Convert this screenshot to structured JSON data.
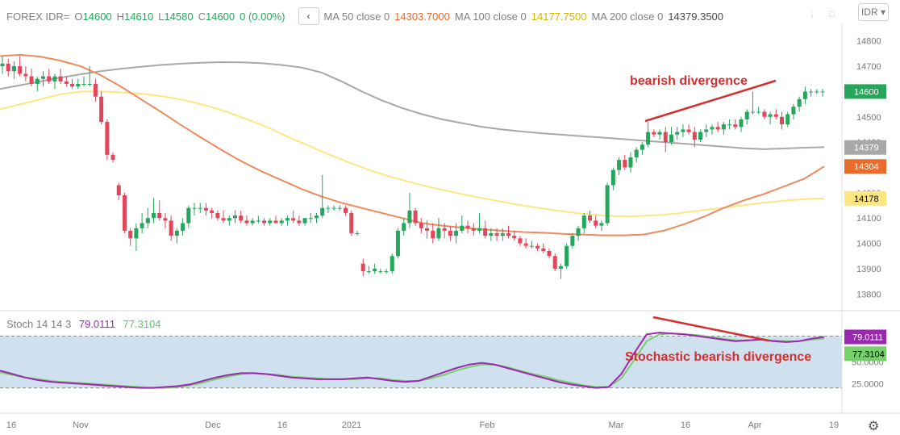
{
  "header": {
    "symbol": "FOREX IDR=",
    "o_label": "O",
    "o_value": "14600",
    "h_label": "H",
    "h_value": "14610",
    "l_label": "L",
    "l_value": "14580",
    "c_label": "C",
    "c_value": "14600",
    "change": "0 (0.00%)",
    "ma50_label": "MA 50 close 0",
    "ma50_value": "14303.7000",
    "ma100_label": "MA 100 close 0",
    "ma100_value": "14177.7500",
    "ma200_label": "MA 200 close 0",
    "ma200_value": "14379.3500",
    "currency": "IDR"
  },
  "colors": {
    "up": "#26a65b",
    "down": "#e0485a",
    "ma50": "#ee8a5e",
    "ma100": "#ffe680",
    "ma200": "#a8a8a8",
    "stoch_k": "#9c27b0",
    "stoch_d": "#76d16a",
    "stoch_band": "#cfe0ef",
    "divergence": "#d32f2f"
  },
  "chart_data": [
    {
      "type": "candlestick",
      "title": "FOREX IDR=",
      "ylim": [
        13750,
        14850
      ],
      "y_ticks": [
        13800,
        13900,
        14000,
        14100,
        14200,
        14300,
        14400,
        14500,
        14600,
        14700,
        14800
      ],
      "x_tick_labels": [
        "16",
        "Nov",
        "Dec",
        "16",
        "2021",
        "Feb",
        "Mar",
        "16",
        "Apr",
        "19"
      ],
      "price_labels": [
        {
          "text": "14600",
          "value": 14600,
          "color": "#26a65b"
        },
        {
          "text": "14379",
          "value": 14379,
          "color": "#a8a8a8"
        },
        {
          "text": "14304",
          "value": 14304,
          "color": "#e96c2d"
        },
        {
          "text": "14178",
          "value": 14178,
          "color": "#ffe680"
        }
      ],
      "candles": [
        [
          14700,
          14740,
          14670,
          14710
        ],
        [
          14710,
          14730,
          14660,
          14680
        ],
        [
          14680,
          14720,
          14650,
          14700
        ],
        [
          14700,
          14740,
          14660,
          14670
        ],
        [
          14670,
          14700,
          14640,
          14660
        ],
        [
          14660,
          14690,
          14620,
          14630
        ],
        [
          14630,
          14660,
          14600,
          14650
        ],
        [
          14650,
          14680,
          14620,
          14660
        ],
        [
          14660,
          14690,
          14630,
          14640
        ],
        [
          14640,
          14670,
          14610,
          14660
        ],
        [
          14660,
          14690,
          14630,
          14640
        ],
        [
          14640,
          14660,
          14620,
          14630
        ],
        [
          14630,
          14650,
          14610,
          14620
        ],
        [
          14620,
          14650,
          14610,
          14630
        ],
        [
          14630,
          14660,
          14620,
          14630
        ],
        [
          14630,
          14700,
          14620,
          14630
        ],
        [
          14630,
          14650,
          14560,
          14580
        ],
        [
          14580,
          14600,
          14470,
          14480
        ],
        [
          14480,
          14490,
          14330,
          14350
        ],
        [
          14350,
          14360,
          14320,
          14330
        ],
        [
          14230,
          14240,
          14170,
          14190
        ],
        [
          14190,
          14200,
          14040,
          14050
        ],
        [
          14050,
          14060,
          13990,
          14020
        ],
        [
          14020,
          14080,
          13970,
          14060
        ],
        [
          14060,
          14120,
          14040,
          14080
        ],
        [
          14080,
          14140,
          14060,
          14100
        ],
        [
          14100,
          14180,
          14080,
          14120
        ],
        [
          14120,
          14170,
          14090,
          14100
        ],
        [
          14100,
          14120,
          14060,
          14090
        ],
        [
          14090,
          14110,
          14010,
          14030
        ],
        [
          14030,
          14060,
          14000,
          14050
        ],
        [
          14050,
          14100,
          14030,
          14080
        ],
        [
          14080,
          14150,
          14060,
          14140
        ],
        [
          14140,
          14160,
          14110,
          14140
        ],
        [
          14140,
          14160,
          14120,
          14140
        ],
        [
          14140,
          14160,
          14110,
          14130
        ],
        [
          14130,
          14140,
          14100,
          14120
        ],
        [
          14120,
          14130,
          14090,
          14100
        ],
        [
          14100,
          14130,
          14080,
          14090
        ],
        [
          14090,
          14110,
          14070,
          14100
        ],
        [
          14100,
          14130,
          14080,
          14110
        ],
        [
          14110,
          14130,
          14080,
          14090
        ],
        [
          14090,
          14110,
          14070,
          14080
        ],
        [
          14080,
          14100,
          14070,
          14090
        ],
        [
          14090,
          14110,
          14080,
          14090
        ],
        [
          14090,
          14100,
          14070,
          14080
        ],
        [
          14080,
          14100,
          14070,
          14090
        ],
        [
          14090,
          14110,
          14080,
          14080
        ],
        [
          14080,
          14100,
          14070,
          14090
        ],
        [
          14090,
          14110,
          14070,
          14100
        ],
        [
          14100,
          14130,
          14080,
          14090
        ],
        [
          14090,
          14110,
          14070,
          14080
        ],
        [
          14080,
          14100,
          14070,
          14100
        ],
        [
          14100,
          14120,
          14080,
          14100
        ],
        [
          14100,
          14120,
          14080,
          14110
        ],
        [
          14110,
          14270,
          14100,
          14140
        ],
        [
          14140,
          14150,
          14120,
          14140
        ],
        [
          14140,
          14150,
          14130,
          14140
        ],
        [
          14140,
          14150,
          14130,
          14140
        ],
        [
          14140,
          14150,
          14110,
          14120
        ],
        [
          14120,
          14130,
          14030,
          14040
        ],
        [
          14040,
          14050,
          14030,
          14040
        ],
        [
          13920,
          13940,
          13870,
          13890
        ],
        [
          13890,
          13910,
          13880,
          13890
        ],
        [
          13890,
          13920,
          13880,
          13900
        ],
        [
          13890,
          13900,
          13880,
          13890
        ],
        [
          13890,
          13900,
          13880,
          13890
        ],
        [
          13890,
          13960,
          13880,
          13950
        ],
        [
          13950,
          14060,
          13940,
          14050
        ],
        [
          14050,
          14100,
          14030,
          14080
        ],
        [
          14080,
          14200,
          14060,
          14130
        ],
        [
          14130,
          14140,
          14070,
          14080
        ],
        [
          14080,
          14100,
          14040,
          14060
        ],
        [
          14060,
          14090,
          14020,
          14050
        ],
        [
          14050,
          14080,
          14000,
          14020
        ],
        [
          14020,
          14100,
          14010,
          14060
        ],
        [
          14060,
          14080,
          14020,
          14050
        ],
        [
          14050,
          14070,
          14010,
          14030
        ],
        [
          14030,
          14080,
          14000,
          14050
        ],
        [
          14050,
          14110,
          14040,
          14070
        ],
        [
          14070,
          14090,
          14040,
          14060
        ],
        [
          14060,
          14080,
          14030,
          14050
        ],
        [
          14050,
          14120,
          14040,
          14060
        ],
        [
          14060,
          14090,
          14020,
          14030
        ],
        [
          14030,
          14060,
          14010,
          14040
        ],
        [
          14040,
          14060,
          14010,
          14030
        ],
        [
          14030,
          14060,
          14010,
          14040
        ],
        [
          14040,
          14070,
          14020,
          14030
        ],
        [
          14030,
          14050,
          14010,
          14020
        ],
        [
          14020,
          14030,
          13990,
          14000
        ],
        [
          14000,
          14020,
          13980,
          13990
        ],
        [
          13990,
          14010,
          13980,
          13990
        ],
        [
          13990,
          14000,
          13970,
          13980
        ],
        [
          13980,
          14000,
          13960,
          13970
        ],
        [
          13970,
          13980,
          13940,
          13950
        ],
        [
          13950,
          13960,
          13890,
          13900
        ],
        [
          13900,
          13920,
          13860,
          13910
        ],
        [
          13910,
          14000,
          13900,
          13990
        ],
        [
          13990,
          14040,
          13980,
          14030
        ],
        [
          14030,
          14070,
          14010,
          14060
        ],
        [
          14060,
          14120,
          14040,
          14110
        ],
        [
          14110,
          14130,
          14080,
          14090
        ],
        [
          14090,
          14110,
          14060,
          14070
        ],
        [
          14070,
          14090,
          14050,
          14080
        ],
        [
          14080,
          14240,
          14070,
          14230
        ],
        [
          14230,
          14300,
          14210,
          14290
        ],
        [
          14290,
          14340,
          14270,
          14330
        ],
        [
          14330,
          14350,
          14290,
          14300
        ],
        [
          14300,
          14360,
          14280,
          14340
        ],
        [
          14340,
          14380,
          14320,
          14370
        ],
        [
          14370,
          14400,
          14350,
          14390
        ],
        [
          14390,
          14480,
          14380,
          14440
        ],
        [
          14440,
          14450,
          14420,
          14430
        ],
        [
          14430,
          14450,
          14410,
          14440
        ],
        [
          14440,
          14460,
          14360,
          14400
        ],
        [
          14400,
          14460,
          14390,
          14430
        ],
        [
          14430,
          14460,
          14410,
          14440
        ],
        [
          14440,
          14470,
          14420,
          14450
        ],
        [
          14450,
          14470,
          14430,
          14440
        ],
        [
          14440,
          14460,
          14380,
          14410
        ],
        [
          14410,
          14450,
          14400,
          14440
        ],
        [
          14440,
          14470,
          14420,
          14450
        ],
        [
          14450,
          14470,
          14430,
          14460
        ],
        [
          14460,
          14480,
          14440,
          14450
        ],
        [
          14450,
          14480,
          14430,
          14470
        ],
        [
          14470,
          14490,
          14450,
          14470
        ],
        [
          14470,
          14490,
          14450,
          14460
        ],
        [
          14460,
          14500,
          14440,
          14490
        ],
        [
          14490,
          14530,
          14470,
          14520
        ],
        [
          14520,
          14600,
          14510,
          14520
        ],
        [
          14520,
          14540,
          14510,
          14520
        ],
        [
          14520,
          14530,
          14490,
          14500
        ],
        [
          14500,
          14520,
          14470,
          14510
        ],
        [
          14510,
          14530,
          14490,
          14500
        ],
        [
          14500,
          14520,
          14450,
          14470
        ],
        [
          14470,
          14520,
          14460,
          14510
        ],
        [
          14510,
          14550,
          14490,
          14540
        ],
        [
          14540,
          14580,
          14520,
          14570
        ],
        [
          14570,
          14620,
          14550,
          14600
        ],
        [
          14600,
          14610,
          14580,
          14600
        ],
        [
          14600,
          14610,
          14590,
          14600
        ],
        [
          14600,
          14610,
          14580,
          14600
        ]
      ],
      "ma200": [
        14610,
        14625,
        14640,
        14655,
        14668,
        14680,
        14690,
        14698,
        14705,
        14710,
        14714,
        14716,
        14715,
        14712,
        14705,
        14695,
        14675,
        14640,
        14600,
        14565,
        14535,
        14510,
        14490,
        14475,
        14460,
        14450,
        14442,
        14435,
        14429,
        14423,
        14418,
        14412,
        14406,
        14400,
        14394,
        14388,
        14382,
        14376,
        14372,
        14375,
        14378,
        14380
      ],
      "ma100": [
        14530,
        14550,
        14570,
        14590,
        14600,
        14600,
        14596,
        14590,
        14580,
        14565,
        14545,
        14520,
        14490,
        14458,
        14420,
        14385,
        14350,
        14318,
        14288,
        14262,
        14240,
        14220,
        14202,
        14185,
        14170,
        14155,
        14142,
        14130,
        14120,
        14112,
        14107,
        14108,
        14112,
        14120,
        14130,
        14140,
        14150,
        14160,
        14168,
        14175,
        14178
      ],
      "ma50": [
        14740,
        14745,
        14738,
        14722,
        14700,
        14665,
        14620,
        14570,
        14520,
        14468,
        14418,
        14370,
        14325,
        14285,
        14250,
        14215,
        14185,
        14160,
        14140,
        14120,
        14100,
        14080,
        14070,
        14062,
        14055,
        14050,
        14045,
        14042,
        14038,
        14035,
        14032,
        14032,
        14035,
        14050,
        14075,
        14105,
        14140,
        14170,
        14195,
        14225,
        14255,
        14304
      ]
    },
    {
      "type": "line",
      "title": "Stoch 14 14 3",
      "ylim": [
        0,
        100
      ],
      "y_ticks": [
        25,
        50
      ],
      "y_tick_labels": [
        "25.0000",
        "50.0000"
      ],
      "band": [
        20,
        80
      ],
      "k_label": "79.0111",
      "k_value": 79.0111,
      "d_label": "77.3104",
      "d_value": 77.3104,
      "series": [
        {
          "values": [
            40,
            36,
            32,
            29,
            27,
            26,
            25,
            24,
            23,
            22,
            21,
            20,
            20,
            21,
            22,
            24,
            28,
            32,
            35,
            37,
            37,
            36,
            34,
            32,
            31,
            30,
            30,
            30,
            31,
            32,
            30,
            28,
            27,
            28,
            33,
            38,
            43,
            47,
            49,
            47,
            43,
            39,
            35,
            31,
            27,
            24,
            22,
            20,
            21,
            36,
            60,
            82,
            84,
            83,
            82,
            80,
            78,
            76,
            74,
            75,
            76,
            74,
            73,
            74,
            77,
            79
          ]
        },
        {
          "values": [
            38,
            35,
            32,
            30,
            28,
            27,
            26,
            25,
            24,
            23,
            22,
            21,
            20,
            20,
            21,
            23,
            26,
            30,
            33,
            36,
            37,
            36,
            35,
            33,
            32,
            31,
            30,
            30,
            30,
            31,
            31,
            29,
            28,
            28,
            31,
            35,
            40,
            44,
            47,
            47,
            44,
            40,
            36,
            33,
            29,
            26,
            23,
            21,
            21,
            31,
            52,
            74,
            82,
            83,
            82,
            81,
            79,
            77,
            75,
            75,
            76,
            75,
            74,
            74,
            76,
            77
          ]
        }
      ]
    }
  ],
  "annotations": {
    "bearish_divergence": "bearish divergence",
    "stoch_bearish_divergence": "Stochastic bearish divergence"
  }
}
